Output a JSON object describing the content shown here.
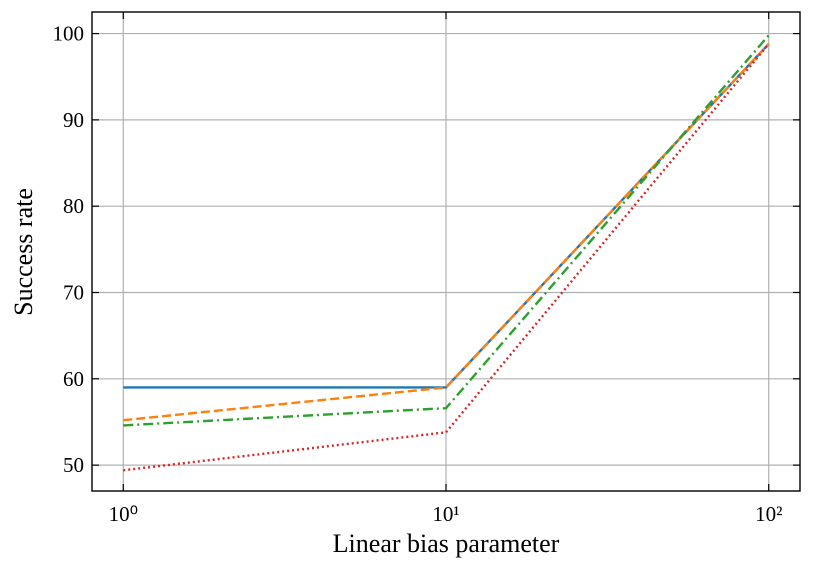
{
  "chart_data": {
    "type": "line",
    "xlabel": "Linear bias parameter",
    "ylabel": "Success rate",
    "x": [
      1,
      10,
      100
    ],
    "xscale": "log",
    "xlim": [
      0.8,
      125
    ],
    "ylim": [
      47,
      102.5
    ],
    "xticks": [
      {
        "value": 1,
        "label": "10⁰"
      },
      {
        "value": 10,
        "label": "10¹"
      },
      {
        "value": 100,
        "label": "10²"
      }
    ],
    "yticks": [
      50,
      60,
      70,
      80,
      90,
      100
    ],
    "grid": true,
    "series": [
      {
        "color": "#1f77b4",
        "linestyle": "solid",
        "values": [
          59,
          59,
          98.8
        ]
      },
      {
        "color": "#ff7f0e",
        "linestyle": "dashed",
        "values": [
          55.2,
          59,
          98.8
        ]
      },
      {
        "color": "#2ca02c",
        "linestyle": "dashdot",
        "values": [
          54.6,
          56.6,
          99.8
        ]
      },
      {
        "color": "#d62728",
        "linestyle": "dotted",
        "values": [
          49.4,
          53.8,
          98.8
        ]
      }
    ]
  }
}
